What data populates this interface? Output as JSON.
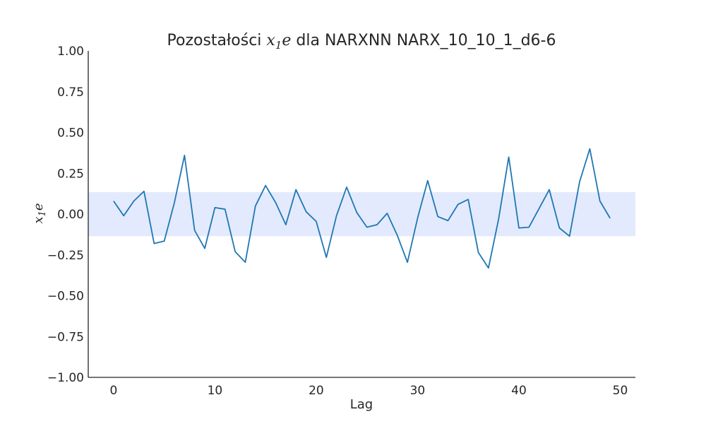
{
  "chart_data": {
    "type": "line",
    "title": {
      "prefix": "Pozostałości ",
      "var_base": "x",
      "var_sub": "1",
      "var_suffix": "e",
      "suffix": " dla NARXNN NARX_10_10_1_d6-6"
    },
    "xlabel": "Lag",
    "ylabel": {
      "base": "x",
      "sub": "1",
      "suffix": "e"
    },
    "xlim": [
      -2.5,
      51.5
    ],
    "ylim": [
      -1.0,
      1.0
    ],
    "x_ticks": [
      0,
      10,
      20,
      30,
      40,
      50
    ],
    "x_tick_labels": [
      "0",
      "10",
      "20",
      "30",
      "40",
      "50"
    ],
    "y_ticks": [
      -1.0,
      -0.75,
      -0.5,
      -0.25,
      0.0,
      0.25,
      0.5,
      0.75,
      1.0
    ],
    "y_tick_labels": [
      "−1.00",
      "−0.75",
      "−0.50",
      "−0.25",
      "0.00",
      "0.25",
      "0.50",
      "0.75",
      "1.00"
    ],
    "grid": false,
    "confidence_band": [
      -0.135,
      0.135
    ],
    "band_color": "#e3eafd",
    "line_color": "#1f77b4",
    "x": [
      0,
      1,
      2,
      3,
      4,
      5,
      6,
      7,
      8,
      9,
      10,
      11,
      12,
      13,
      14,
      15,
      16,
      17,
      18,
      19,
      20,
      21,
      22,
      23,
      24,
      25,
      26,
      27,
      28,
      29,
      30,
      31,
      32,
      33,
      34,
      35,
      36,
      37,
      38,
      39,
      40,
      41,
      42,
      43,
      44,
      45,
      46,
      47,
      48,
      49
    ],
    "y": [
      0.08,
      -0.01,
      0.08,
      0.14,
      -0.18,
      -0.165,
      0.07,
      0.36,
      -0.1,
      -0.21,
      0.04,
      0.03,
      -0.23,
      -0.295,
      0.05,
      0.175,
      0.07,
      -0.065,
      0.15,
      0.015,
      -0.045,
      -0.265,
      -0.01,
      0.165,
      0.01,
      -0.08,
      -0.065,
      0.005,
      -0.13,
      -0.295,
      -0.025,
      0.205,
      -0.015,
      -0.04,
      0.06,
      0.09,
      -0.235,
      -0.33,
      -0.03,
      0.35,
      -0.085,
      -0.08,
      0.035,
      0.15,
      -0.085,
      -0.135,
      0.2,
      0.4,
      0.08,
      -0.025
    ]
  }
}
